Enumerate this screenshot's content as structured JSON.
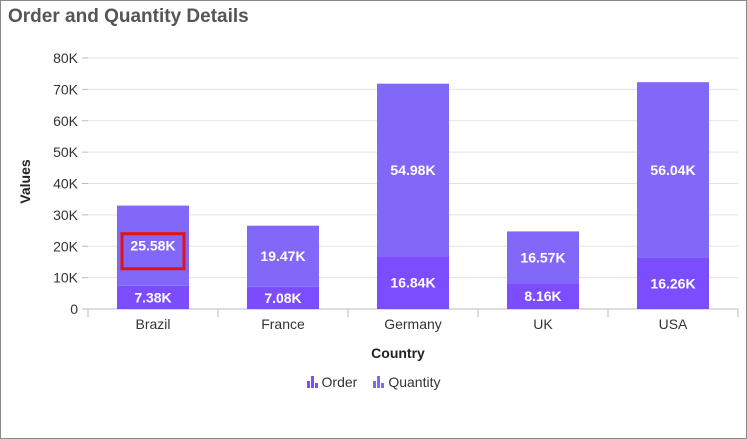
{
  "colors": {
    "order": "#7B4DFF",
    "quantity": "#8268F8",
    "highlight": "#E11414"
  },
  "chart_data": {
    "type": "bar",
    "stacked": true,
    "title": "Order and Quantity Details",
    "xlabel": "Country",
    "ylabel": "Values",
    "categories": [
      "Brazil",
      "France",
      "Germany",
      "UK",
      "USA"
    ],
    "series": [
      {
        "name": "Order",
        "values": [
          7380,
          7080,
          16840,
          8160,
          16260
        ],
        "labels": [
          "7.38K",
          "7.08K",
          "16.84K",
          "8.16K",
          "16.26K"
        ]
      },
      {
        "name": "Quantity",
        "values": [
          25580,
          19470,
          54980,
          16570,
          56040
        ],
        "labels": [
          "25.58K",
          "19.47K",
          "54.98K",
          "16.57K",
          "56.04K"
        ]
      }
    ],
    "yticks": [
      0,
      10000,
      20000,
      30000,
      40000,
      50000,
      60000,
      70000,
      80000
    ],
    "ytick_labels": [
      "0",
      "10K",
      "20K",
      "30K",
      "40K",
      "50K",
      "60K",
      "70K",
      "80K"
    ],
    "ylim": [
      0,
      80000
    ],
    "grid": true,
    "legend_position": "bottom",
    "highlighted": {
      "series": 1,
      "category": 0
    }
  }
}
